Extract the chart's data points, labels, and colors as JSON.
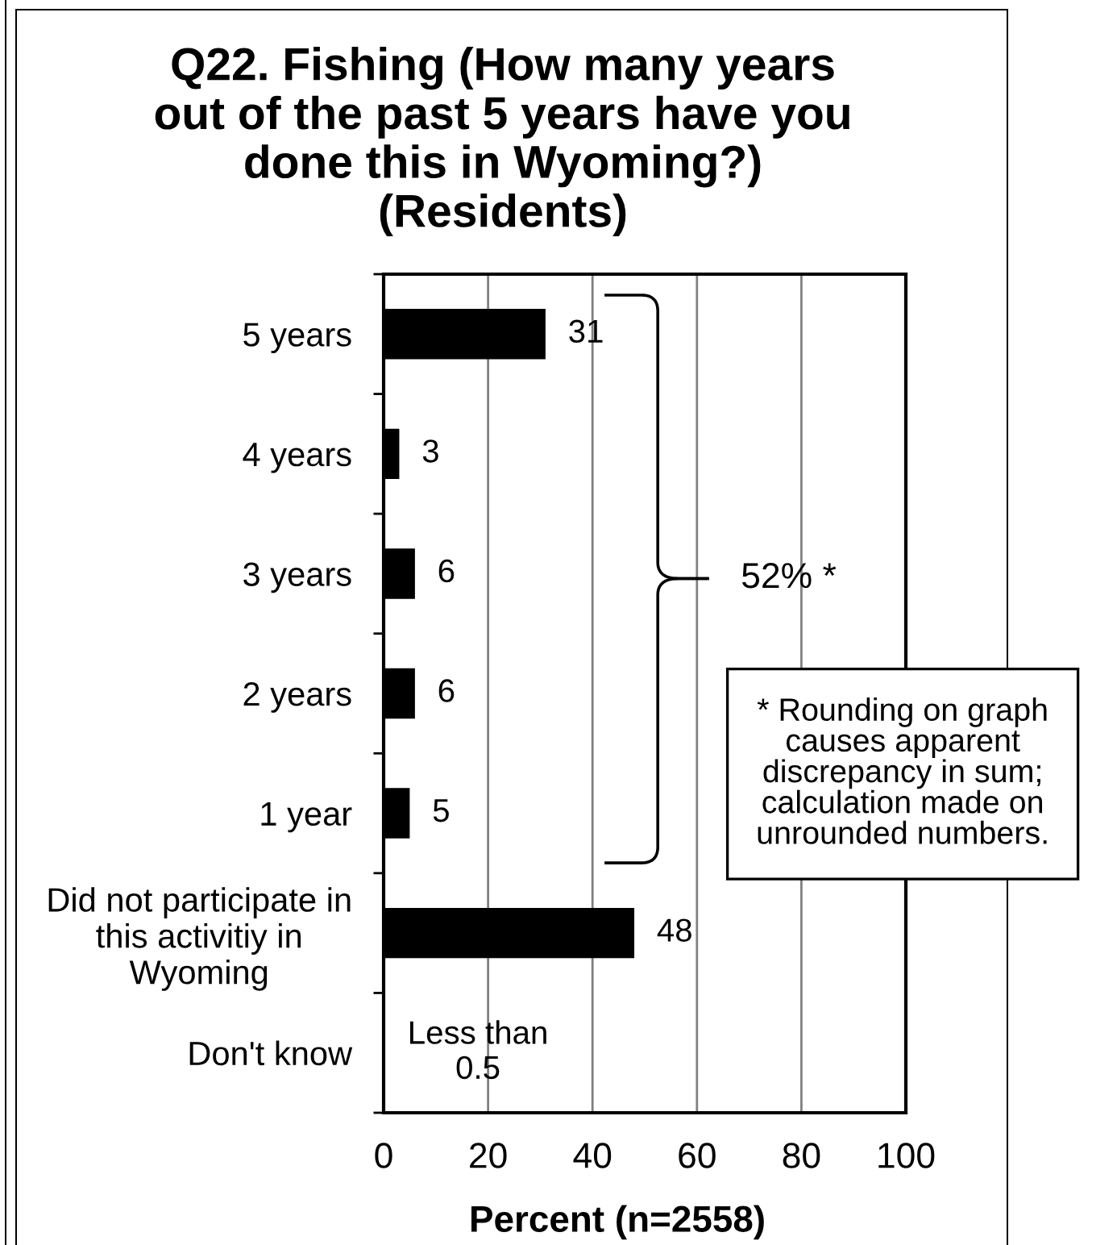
{
  "chart_data": {
    "type": "bar",
    "orientation": "horizontal",
    "title": "Q22. Fishing (How many years\nout of the past 5 years have you\ndone this in Wyoming?)\n(Residents)",
    "xlabel": "Percent (n=2558)",
    "categories": [
      "5 years",
      "4 years",
      "3 years",
      "2 years",
      "1 year",
      "Did not participate in\nthis activitiy in\nWyoming",
      "Don't know"
    ],
    "values": [
      31,
      3,
      6,
      6,
      5,
      48,
      0.3
    ],
    "value_labels": [
      "31",
      "3",
      "6",
      "6",
      "5",
      "48",
      "Less than\n0.5"
    ],
    "color": "#000000",
    "xlim": [
      0,
      100
    ],
    "xticks": [
      0,
      20,
      40,
      60,
      80,
      100
    ],
    "grid": "x",
    "annotations": [
      "52% *",
      "* Rounding on graph\ncauses apparent\ndiscrepancy in sum;\ncalculation made on\nunrounded numbers."
    ]
  }
}
